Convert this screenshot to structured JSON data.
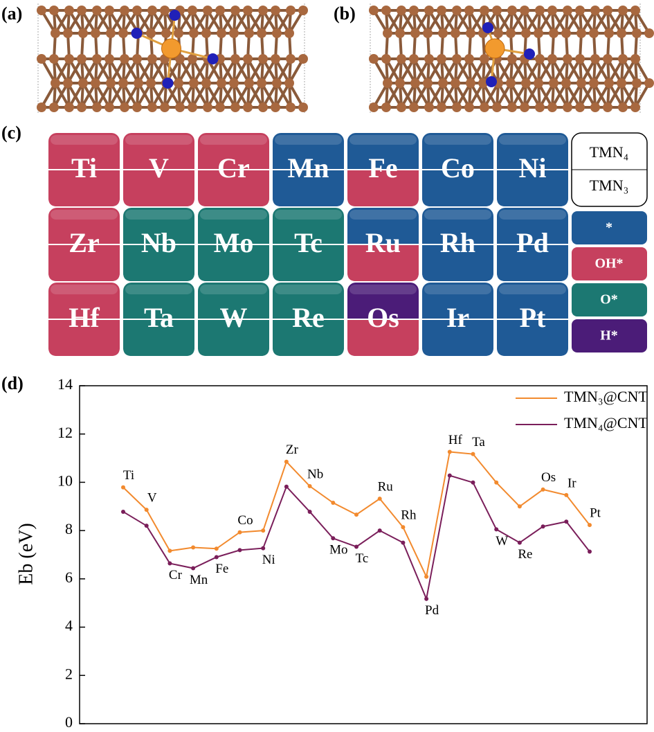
{
  "panels": {
    "a": "(a)",
    "b": "(b)",
    "c": "(c)",
    "d": "(d)"
  },
  "table": {
    "rows": [
      [
        {
          "element": "Ti",
          "tmn4": "OH*",
          "tmn3": "OH*"
        },
        {
          "element": "V",
          "tmn4": "OH*",
          "tmn3": "OH*"
        },
        {
          "element": "Cr",
          "tmn4": "OH*",
          "tmn3": "OH*"
        },
        {
          "element": "Mn",
          "tmn4": "*",
          "tmn3": "*"
        },
        {
          "element": "Fe",
          "tmn4": "*",
          "tmn3": "OH*"
        },
        {
          "element": "Co",
          "tmn4": "*",
          "tmn3": "*"
        },
        {
          "element": "Ni",
          "tmn4": "*",
          "tmn3": "*"
        }
      ],
      [
        {
          "element": "Zr",
          "tmn4": "OH*",
          "tmn3": "OH*"
        },
        {
          "element": "Nb",
          "tmn4": "O*",
          "tmn3": "O*"
        },
        {
          "element": "Mo",
          "tmn4": "O*",
          "tmn3": "O*"
        },
        {
          "element": "Tc",
          "tmn4": "O*",
          "tmn3": "O*"
        },
        {
          "element": "Ru",
          "tmn4": "*",
          "tmn3": "OH*"
        },
        {
          "element": "Rh",
          "tmn4": "*",
          "tmn3": "*"
        },
        {
          "element": "Pd",
          "tmn4": "*",
          "tmn3": "*"
        }
      ],
      [
        {
          "element": "Hf",
          "tmn4": "OH*",
          "tmn3": "OH*"
        },
        {
          "element": "Ta",
          "tmn4": "O*",
          "tmn3": "O*"
        },
        {
          "element": "W",
          "tmn4": "O*",
          "tmn3": "O*"
        },
        {
          "element": "Re",
          "tmn4": "O*",
          "tmn3": "O*"
        },
        {
          "element": "Os",
          "tmn4": "H*",
          "tmn3": "OH*"
        },
        {
          "element": "Ir",
          "tmn4": "*",
          "tmn3": "*"
        },
        {
          "element": "Pt",
          "tmn4": "*",
          "tmn3": "*"
        }
      ]
    ],
    "configs": [
      "TMN₄",
      "TMN₃"
    ],
    "species": [
      {
        "label": "*",
        "color": "#1f5a96"
      },
      {
        "label": "OH*",
        "color": "#c6405e"
      },
      {
        "label": "O*",
        "color": "#1c7872"
      },
      {
        "label": "H*",
        "color": "#4b1c78"
      }
    ]
  },
  "chart_data": {
    "type": "line",
    "ylabel": "Eb (eV)",
    "categories": [
      "Ti",
      "V",
      "Cr",
      "Mn",
      "Fe",
      "Co",
      "Ni",
      "Zr",
      "Nb",
      "Mo",
      "Tc",
      "Ru",
      "Rh",
      "Pd",
      "Hf",
      "Ta",
      "W",
      "Re",
      "Os",
      "Ir",
      "Pt"
    ],
    "series": [
      {
        "name": "TMN₃@CNT",
        "color": "#f28a2e",
        "values": [
          9.79,
          8.86,
          7.16,
          7.3,
          7.25,
          7.93,
          8.0,
          10.85,
          9.84,
          9.15,
          8.66,
          9.32,
          8.14,
          6.09,
          11.26,
          11.17,
          9.99,
          9.0,
          9.7,
          9.47,
          8.23
        ]
      },
      {
        "name": "TMN₄@CNT",
        "color": "#7a1e5a",
        "values": [
          8.78,
          8.2,
          6.64,
          6.44,
          6.9,
          7.19,
          7.27,
          9.82,
          8.78,
          7.68,
          7.33,
          8.0,
          7.5,
          5.17,
          10.28,
          9.99,
          8.05,
          7.5,
          8.17,
          8.37,
          7.13
        ]
      }
    ],
    "ylim": [
      0,
      14
    ],
    "yticks": [
      0,
      2,
      4,
      6,
      8,
      10,
      12,
      14
    ],
    "legend": "upper right"
  }
}
